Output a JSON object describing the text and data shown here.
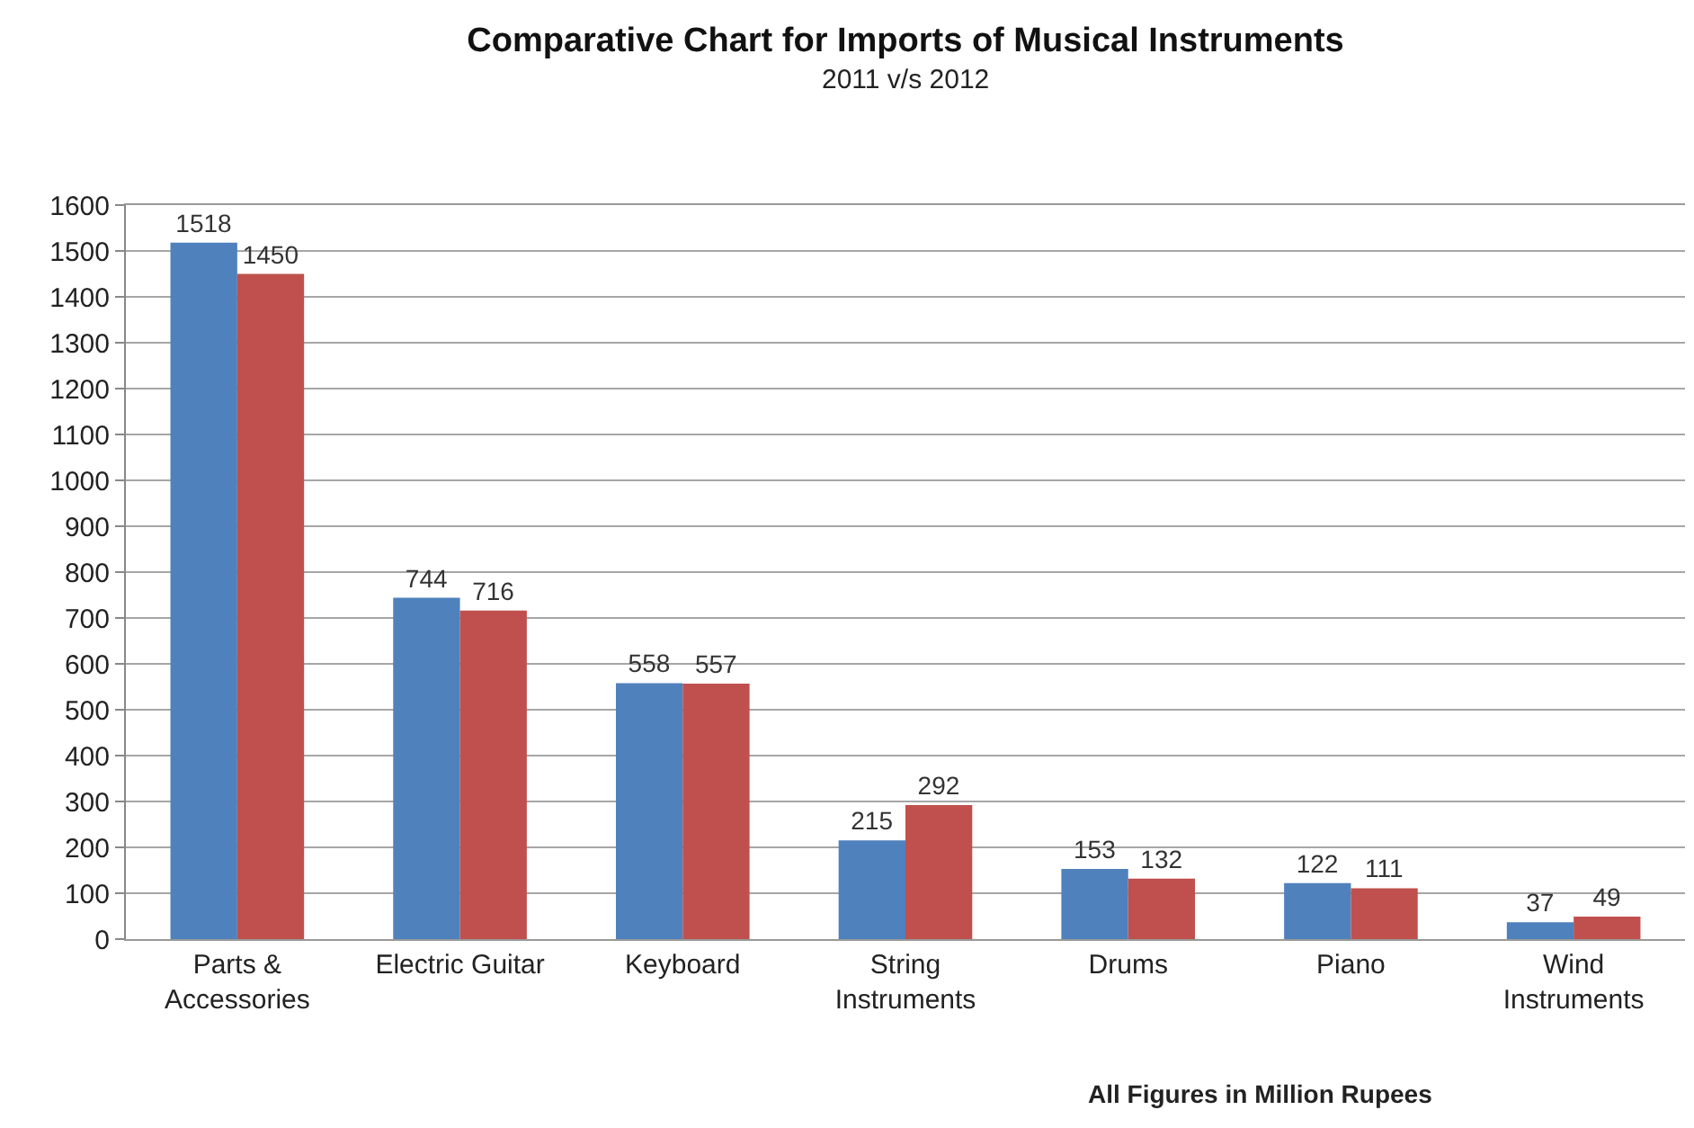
{
  "chart_data": {
    "type": "bar",
    "title": "Comparative Chart for Imports of Musical Instruments",
    "subtitle": "2011 v/s 2012",
    "categories": [
      "Parts & Accessories",
      "Electric Guitar",
      "Keyboard",
      "String Instruments",
      "Drums",
      "Piano",
      "Wind Instruments"
    ],
    "series": [
      {
        "color": "#4f81bd",
        "values": [
          1518,
          744,
          558,
          215,
          153,
          122,
          37
        ]
      },
      {
        "color": "#c0504d",
        "values": [
          1450,
          716,
          557,
          292,
          132,
          111,
          49
        ]
      }
    ],
    "ylim": [
      0,
      1600
    ],
    "yticks": [
      0,
      100,
      200,
      300,
      400,
      500,
      600,
      700,
      800,
      900,
      1000,
      1100,
      1200,
      1300,
      1400,
      1500,
      1600
    ],
    "grid": "y",
    "data_labels": true,
    "annotations": [
      "All Figures in Million Rupees"
    ]
  }
}
